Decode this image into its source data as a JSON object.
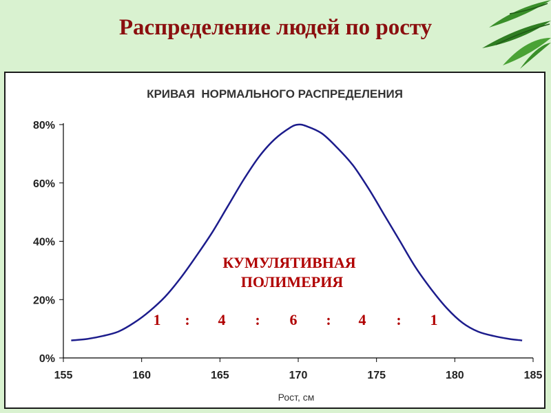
{
  "slide": {
    "title": "Распределение людей по росту"
  },
  "annotation": {
    "line1": "КУМУЛЯТИВНАЯ",
    "line2": "ПОЛИМЕРИЯ",
    "ratio": [
      "1",
      ":",
      "4",
      ":",
      "6",
      ":",
      "4",
      ":",
      "1"
    ]
  },
  "chart_data": {
    "type": "line",
    "title": "КРИВАЯ  НОРМАЛЬНОГО РАСПРЕДЕЛЕНИЯ",
    "xlabel": "Рост, см",
    "ylabel": "",
    "xlim": [
      155,
      185
    ],
    "ylim": [
      0,
      80
    ],
    "x_ticks": [
      155,
      160,
      165,
      170,
      175,
      180,
      185
    ],
    "y_ticks": [
      0,
      20,
      40,
      60,
      80
    ],
    "y_tick_labels": [
      "0%",
      "20%",
      "40%",
      "60%",
      "80%"
    ],
    "grid": false,
    "series": [
      {
        "color": "#1c1c8c",
        "x": [
          155.5,
          156.5,
          157.5,
          158.5,
          159.5,
          160.5,
          161.5,
          162.5,
          163.5,
          164.5,
          165.5,
          166.5,
          167.5,
          168.5,
          169.5,
          170,
          170.5,
          171.5,
          172.5,
          173.5,
          174.5,
          175.5,
          176.5,
          177.5,
          178.5,
          179.5,
          180.5,
          181.5,
          182.5,
          183.5,
          184.3
        ],
        "y": [
          6,
          6.5,
          7.5,
          9,
          12,
          16,
          21,
          27.5,
          35,
          43,
          52,
          61,
          69,
          75,
          79,
          80,
          79.5,
          77,
          72,
          66,
          58,
          49,
          40,
          31,
          23.5,
          17,
          12,
          9,
          7.5,
          6.5,
          6
        ]
      }
    ]
  }
}
